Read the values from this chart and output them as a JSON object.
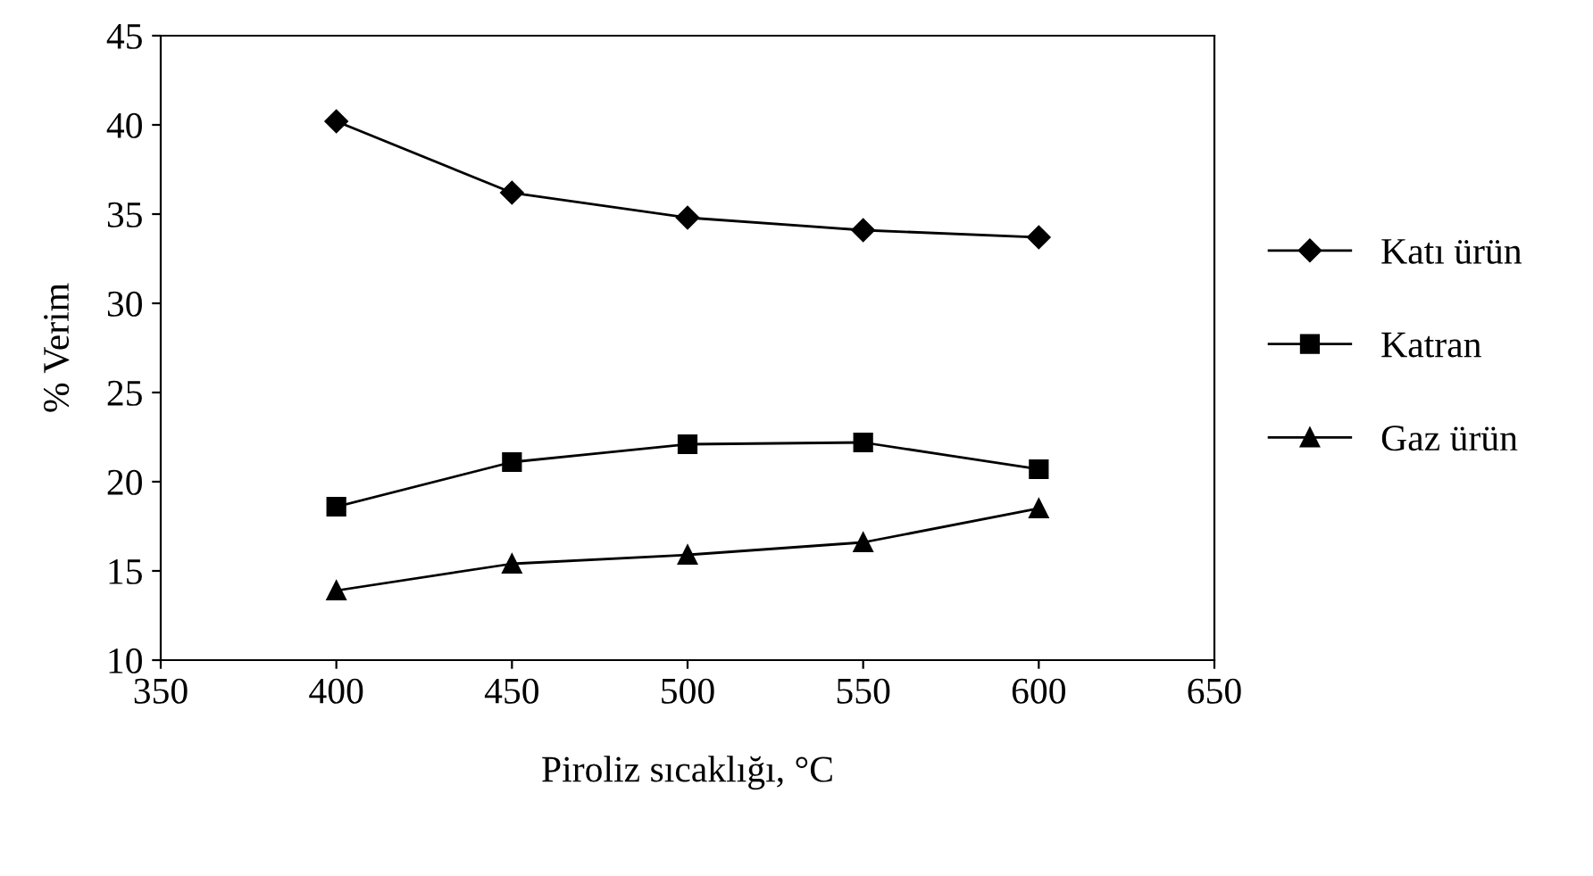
{
  "chart_data": {
    "type": "line",
    "xlabel": "Piroliz sıcaklığı, °C",
    "ylabel": "% Verim",
    "x": [
      400,
      450,
      500,
      550,
      600
    ],
    "series": [
      {
        "name": "Katı ürün",
        "color": "#000000",
        "marker": "diamond",
        "values": [
          40.2,
          36.2,
          34.8,
          34.1,
          33.7
        ]
      },
      {
        "name": "Katran",
        "color": "#000000",
        "marker": "square",
        "values": [
          18.6,
          21.1,
          22.1,
          22.2,
          20.7
        ]
      },
      {
        "name": "Gaz ürün",
        "color": "#000000",
        "marker": "triangle",
        "values": [
          13.9,
          15.4,
          15.9,
          16.6,
          18.5
        ]
      }
    ],
    "xlim": [
      350,
      650
    ],
    "xticks": [
      350,
      400,
      450,
      500,
      550,
      600,
      650
    ],
    "ylim": [
      10,
      45
    ],
    "yticks": [
      10,
      15,
      20,
      25,
      30,
      35,
      40,
      45
    ],
    "grid": false,
    "legend": "right",
    "line_style": "solid"
  }
}
